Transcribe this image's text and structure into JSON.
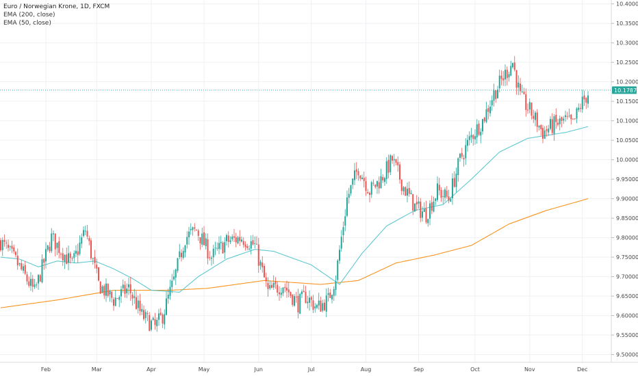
{
  "legend": {
    "title": "Euro / Norwegian Krone, 1D, FXCM",
    "ema200": "EMA (200, close)",
    "ema50": "EMA (50, close)"
  },
  "colors": {
    "up": "#26a69a",
    "down": "#ef5350",
    "ema50": "#5ec8cf",
    "ema200": "#f7931e",
    "grid": "#eef0f3",
    "priceline": "#26a69a"
  },
  "chart_data": {
    "type": "candlestick",
    "symbol": "Euro / Norwegian Krone, 1D, FXCM",
    "x_ticks": [
      "Feb",
      "Mar",
      "Apr",
      "May",
      "Jun",
      "Jul",
      "Aug",
      "Sep",
      "Oct",
      "Nov",
      "Dec"
    ],
    "y_ticks": [
      "9.50000",
      "9.55000",
      "9.60000",
      "9.65000",
      "9.70000",
      "9.75000",
      "9.80000",
      "9.85000",
      "9.90000",
      "9.95000",
      "10.00000",
      "10.05000",
      "10.10000",
      "10.15000",
      "10.20000",
      "10.25000",
      "10.30000",
      "10.35000",
      "10.40000"
    ],
    "ylim": [
      9.48,
      10.41
    ],
    "last_price": "10.17870",
    "last_price_value": 10.1787,
    "anchors": {
      "close": [
        [
          0,
          9.79
        ],
        [
          8,
          9.74
        ],
        [
          18,
          9.66
        ],
        [
          27,
          9.8
        ],
        [
          38,
          9.73
        ],
        [
          45,
          9.82
        ],
        [
          52,
          9.68
        ],
        [
          60,
          9.64
        ],
        [
          68,
          9.67
        ],
        [
          75,
          9.6
        ],
        [
          82,
          9.57
        ],
        [
          86,
          9.6
        ],
        [
          92,
          9.69
        ],
        [
          98,
          9.8
        ],
        [
          104,
          9.82
        ],
        [
          112,
          9.75
        ],
        [
          120,
          9.79
        ],
        [
          128,
          9.8
        ],
        [
          135,
          9.78
        ],
        [
          142,
          9.66
        ],
        [
          150,
          9.68
        ],
        [
          158,
          9.63
        ],
        [
          162,
          9.65
        ],
        [
          168,
          9.62
        ],
        [
          174,
          9.64
        ],
        [
          178,
          9.7
        ],
        [
          184,
          9.9
        ],
        [
          190,
          9.98
        ],
        [
          196,
          9.92
        ],
        [
          202,
          9.95
        ],
        [
          208,
          10.0
        ],
        [
          214,
          9.93
        ],
        [
          220,
          9.88
        ],
        [
          226,
          9.86
        ],
        [
          232,
          9.92
        ],
        [
          238,
          9.9
        ],
        [
          244,
          10.0
        ],
        [
          250,
          10.06
        ],
        [
          256,
          10.1
        ],
        [
          262,
          10.17
        ],
        [
          268,
          10.22
        ],
        [
          272,
          10.25
        ],
        [
          276,
          10.16
        ],
        [
          282,
          10.12
        ],
        [
          288,
          10.07
        ],
        [
          294,
          10.09
        ],
        [
          300,
          10.1
        ],
        [
          304,
          10.09
        ],
        [
          308,
          10.14
        ],
        [
          312,
          10.17
        ]
      ],
      "ema50": [
        [
          0,
          9.75
        ],
        [
          10,
          9.745
        ],
        [
          20,
          9.725
        ],
        [
          30,
          9.74
        ],
        [
          40,
          9.735
        ],
        [
          50,
          9.74
        ],
        [
          60,
          9.72
        ],
        [
          70,
          9.695
        ],
        [
          80,
          9.665
        ],
        [
          95,
          9.66
        ],
        [
          105,
          9.7
        ],
        [
          120,
          9.745
        ],
        [
          135,
          9.77
        ],
        [
          145,
          9.765
        ],
        [
          165,
          9.73
        ],
        [
          180,
          9.68
        ],
        [
          192,
          9.76
        ],
        [
          205,
          9.83
        ],
        [
          220,
          9.87
        ],
        [
          235,
          9.885
        ],
        [
          250,
          9.95
        ],
        [
          265,
          10.02
        ],
        [
          280,
          10.055
        ],
        [
          300,
          10.07
        ],
        [
          312,
          10.085
        ]
      ],
      "ema200": [
        [
          0,
          9.62
        ],
        [
          30,
          9.64
        ],
        [
          60,
          9.665
        ],
        [
          90,
          9.665
        ],
        [
          110,
          9.67
        ],
        [
          140,
          9.69
        ],
        [
          170,
          9.68
        ],
        [
          190,
          9.69
        ],
        [
          210,
          9.735
        ],
        [
          230,
          9.755
        ],
        [
          250,
          9.78
        ],
        [
          270,
          9.835
        ],
        [
          290,
          9.87
        ],
        [
          312,
          9.9
        ]
      ]
    }
  }
}
